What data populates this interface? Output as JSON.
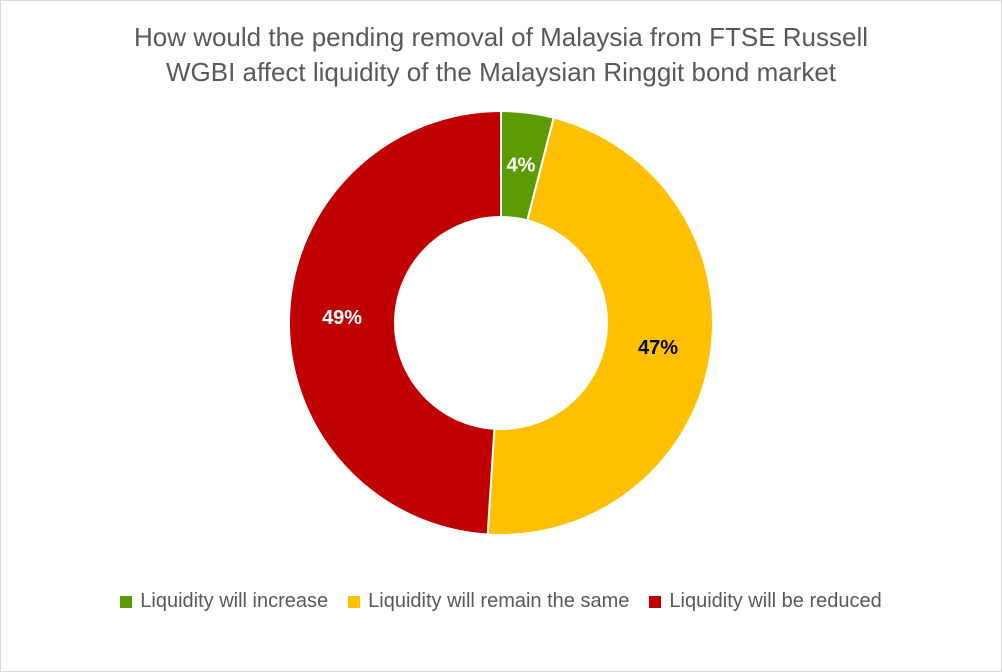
{
  "chart_data": {
    "type": "pie",
    "title_lines": [
      "How would the pending removal of Malaysia from FTSE Russell",
      "WGBI affect liquidity of the Malaysian Ringgit bond market"
    ],
    "categories": [
      "Liquidity will increase",
      "Liquidity will remain the same",
      "Liquidity will be reduced"
    ],
    "values": [
      4,
      47,
      49
    ],
    "labels": [
      "4%",
      "47%",
      "49%"
    ],
    "colors": [
      "#5b9b00",
      "#ffc000",
      "#c00000"
    ],
    "label_colors": [
      "#ffffff",
      "#000000",
      "#ffffff"
    ],
    "legend_position": "bottom",
    "style": "donut"
  }
}
